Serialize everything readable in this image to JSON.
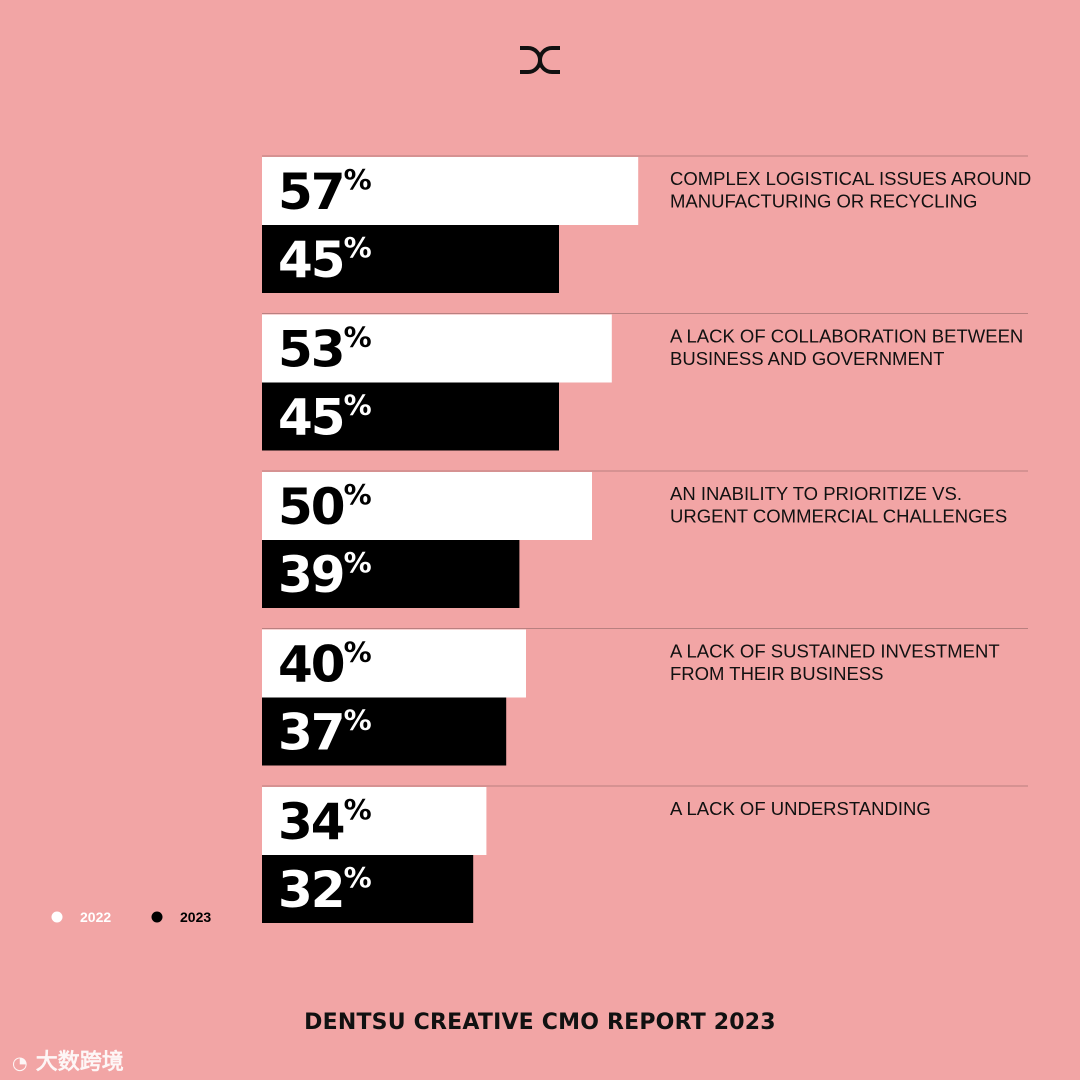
{
  "header": {
    "logo": "dc-logo"
  },
  "chart_data": {
    "type": "bar",
    "orientation": "horizontal",
    "categories": [
      "COMPLEX LOGISTICAL ISSUES AROUND MANUFACTURING OR RECYCLING",
      "A LACK OF COLLABORATION BETWEEN BUSINESS AND GOVERNMENT",
      "AN INABILITY TO PRIORITIZE VS. URGENT COMMERCIAL CHALLENGES",
      "A LACK OF SUSTAINED INVESTMENT FROM THEIR BUSINESS",
      "A LACK OF UNDERSTANDING"
    ],
    "category_lines": [
      [
        "COMPLEX LOGISTICAL ISSUES AROUND",
        "MANUFACTURING OR RECYCLING"
      ],
      [
        "A LACK OF COLLABORATION BETWEEN",
        "BUSINESS AND GOVERNMENT"
      ],
      [
        "AN INABILITY TO PRIORITIZE VS.",
        "URGENT COMMERCIAL CHALLENGES"
      ],
      [
        "A LACK OF SUSTAINED INVESTMENT",
        "FROM THEIR BUSINESS"
      ],
      [
        "A LACK OF UNDERSTANDING"
      ]
    ],
    "series": [
      {
        "name": "2022",
        "values": [
          57,
          53,
          50,
          40,
          34
        ],
        "labels": [
          "57%",
          "53%",
          "50%",
          "40%",
          "34%"
        ],
        "color": "#ffffff",
        "text_color": "#000000"
      },
      {
        "name": "2023",
        "values": [
          45,
          45,
          39,
          37,
          32
        ],
        "labels": [
          "45%",
          "45%",
          "39%",
          "37%",
          "32%"
        ],
        "color": "#000000",
        "text_color": "#ffffff"
      }
    ],
    "unit": "%",
    "legend": "bottom-left",
    "grid": false
  },
  "footer": {
    "title": "DENTSU CREATIVE CMO REPORT 2023"
  },
  "watermark": {
    "text": "大数跨境"
  }
}
